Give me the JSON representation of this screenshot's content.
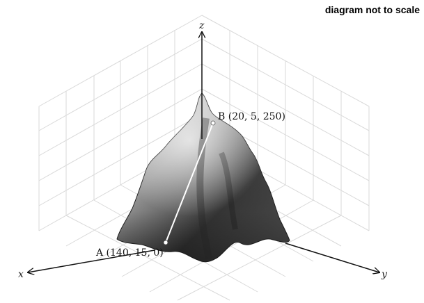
{
  "note": "diagram not to scale",
  "axes": {
    "x": "x",
    "y": "y",
    "z": "z"
  },
  "points": {
    "A": {
      "label": "A (140,  15,  0)",
      "coords": [
        140,
        15,
        0
      ]
    },
    "B": {
      "label": "B (20,  5,  250)",
      "coords": [
        20,
        5,
        250
      ]
    }
  }
}
